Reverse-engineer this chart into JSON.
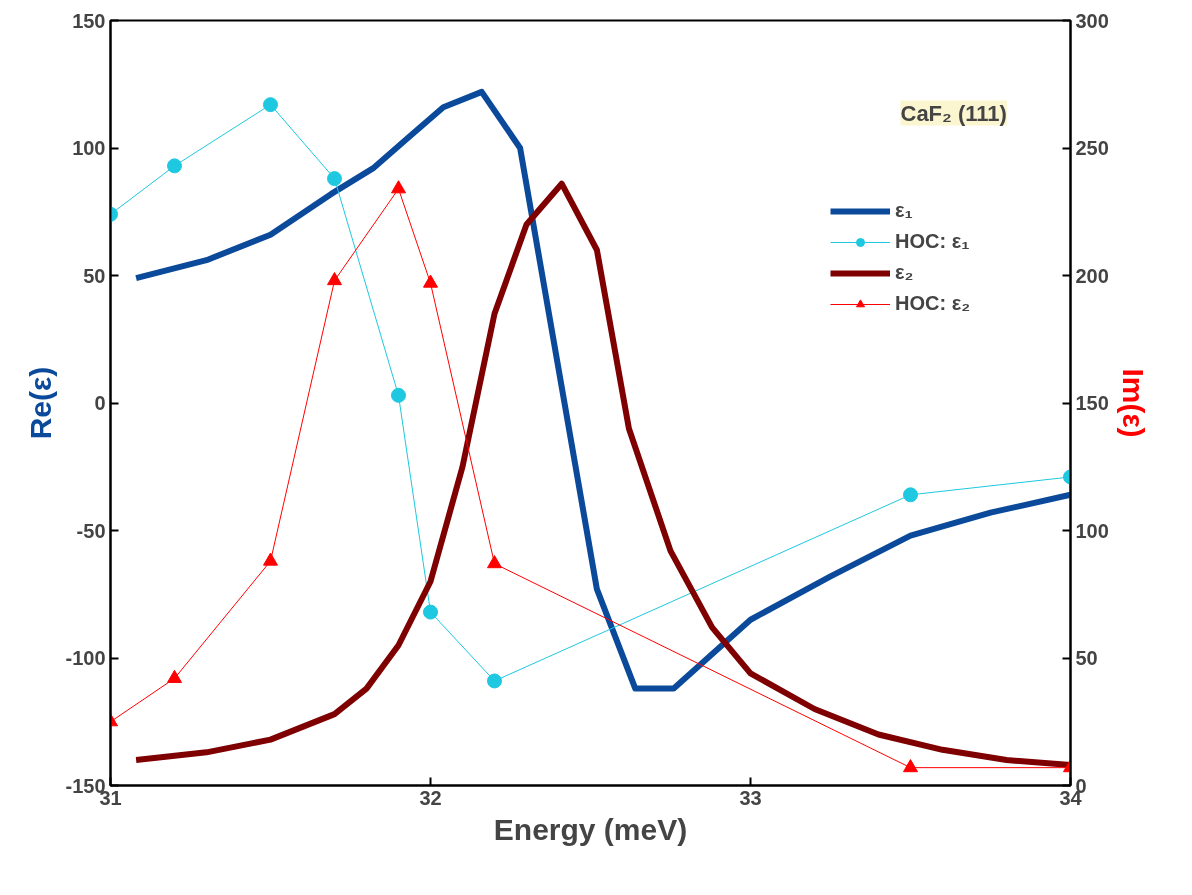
{
  "chart_data": {
    "type": "line",
    "xlabel": "Energy (meV)",
    "ylabel": "Re(ε)",
    "y2label": "Im(ε)",
    "annotations": [
      "CaF₂ (111)"
    ],
    "xlim": [
      31,
      34
    ],
    "xticks": [
      31,
      32,
      33,
      34
    ],
    "ylim": [
      -150,
      150
    ],
    "yticks": [
      -150,
      -100,
      -50,
      0,
      50,
      100,
      150
    ],
    "y2lim": [
      0,
      300
    ],
    "y2ticks": [
      0,
      50,
      100,
      150,
      200,
      250,
      300
    ],
    "grid": false,
    "legend": "top right",
    "series": [
      {
        "name": "ε₁",
        "color": "#0b4a9b",
        "marker": "none",
        "x": [
          31.08,
          31.3,
          31.5,
          31.69,
          31.82,
          31.93,
          32.04,
          32.16,
          32.28,
          32.52,
          32.64,
          32.76,
          33.0,
          33.25,
          33.5,
          33.75,
          34.0
        ],
        "values": [
          49,
          56,
          66,
          82,
          92,
          104,
          116,
          122,
          100,
          -73,
          -112,
          -112,
          -85,
          -68,
          -52,
          -43,
          -36
        ]
      },
      {
        "name": "HOC: ε₁",
        "color": "#1ec8e0",
        "marker": "circle",
        "x": [
          31.0,
          31.2,
          31.5,
          31.7,
          31.9,
          32.0,
          32.2,
          33.5,
          34.0
        ],
        "values": [
          74,
          93,
          117,
          88,
          3,
          -82,
          -109,
          -36,
          -29
        ]
      },
      {
        "name": "ε₂",
        "color": "#7f0000",
        "marker": "none",
        "axis": "y2",
        "x": [
          31.08,
          31.3,
          31.5,
          31.7,
          31.8,
          31.9,
          32.0,
          32.1,
          32.2,
          32.3,
          32.41,
          32.52,
          32.62,
          32.75,
          32.88,
          33.0,
          33.2,
          33.4,
          33.6,
          33.8,
          34.0
        ],
        "values": [
          10,
          13,
          18,
          28,
          38,
          55,
          80,
          125,
          185,
          220,
          236,
          210,
          140,
          92,
          62,
          44,
          30,
          20,
          14,
          10,
          8
        ]
      },
      {
        "name": "HOC: ε₂",
        "color": "#ff0000",
        "marker": "triangle",
        "axis": "y2",
        "x": [
          31.0,
          31.2,
          31.5,
          31.7,
          31.9,
          32.0,
          32.2,
          33.5,
          34.0
        ],
        "values": [
          25,
          42,
          88,
          198,
          234,
          197,
          87,
          7,
          7
        ]
      }
    ]
  }
}
